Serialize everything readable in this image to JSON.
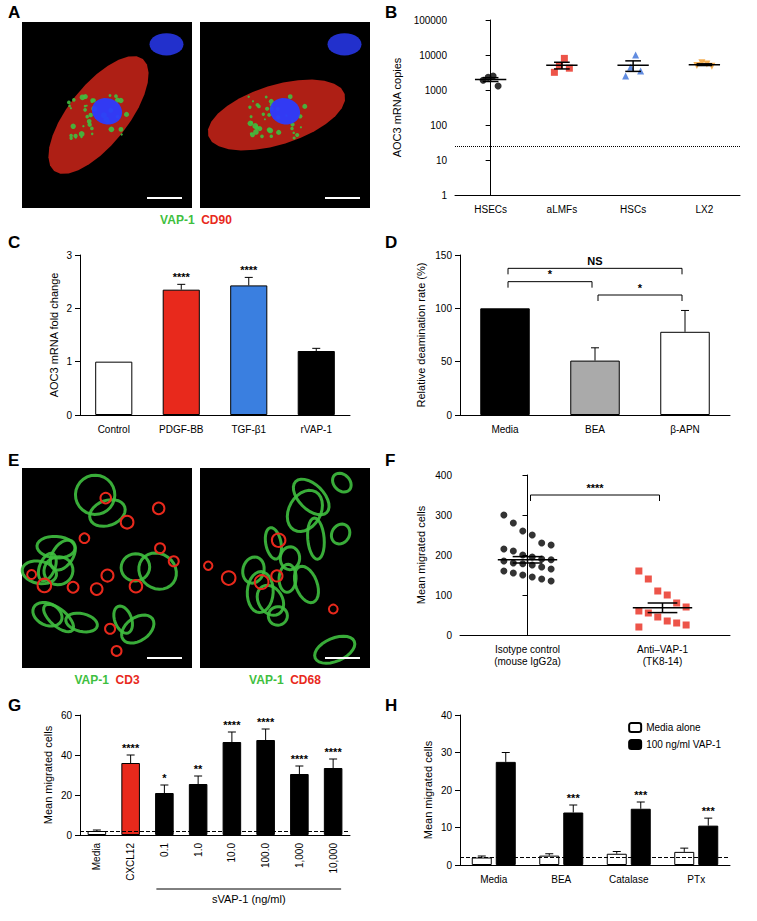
{
  "chart_data": [
    {
      "panel": "B",
      "type": "scatter",
      "categories": [
        "HSECs",
        "aLMFs",
        "HSCs",
        "LX2"
      ],
      "points": [
        [
          1900,
          2300,
          2500,
          1300
        ],
        [
          3200,
          5000,
          8000,
          4200
        ],
        [
          2500,
          4500,
          10000,
          3500
        ],
        [
          5000,
          6000,
          5500,
          4800
        ]
      ],
      "mean": [
        2000,
        5100,
        5100,
        5300
      ],
      "errors": [
        250,
        1100,
        1700,
        300
      ],
      "colors": [
        "#000000",
        "#e8291c",
        "#3a6fd8",
        "#f39c2a"
      ],
      "markers": [
        "circle",
        "square",
        "triangle",
        "triangle-down"
      ],
      "reference_line": 25,
      "line_style": "dotted",
      "ylabel": "AOC3 mRNA copies",
      "log": "y",
      "ylim": [
        1,
        100000
      ],
      "yticks": [
        1,
        10,
        100,
        1000,
        10000,
        100000
      ],
      "grid": false
    },
    {
      "panel": "C",
      "type": "bar",
      "categories": [
        "Control",
        "PDGF-BB",
        "TGF-β1",
        "rVAP-1"
      ],
      "values": [
        1,
        2.35,
        2.43,
        1.2
      ],
      "errors": [
        0,
        0.1,
        0.15,
        0.05
      ],
      "colors": [
        "#ffffff",
        "#e8291c",
        "#3a7fe0",
        "#000000"
      ],
      "significance": [
        null,
        "****",
        "****",
        null
      ],
      "ylabel": "AOC3 mRNA fold change",
      "ylim": [
        0,
        3
      ],
      "yticks": [
        0,
        1,
        2,
        3
      ],
      "grid": false
    },
    {
      "panel": "D",
      "type": "bar",
      "categories": [
        "Media",
        "BEA",
        "β-APN"
      ],
      "values": [
        100,
        51,
        78
      ],
      "errors": [
        0,
        12,
        20
      ],
      "colors": [
        "#000000",
        "#aaaaaa",
        "#ffffff"
      ],
      "comparisons": [
        {
          "from": 1,
          "to": 2,
          "label": "*"
        },
        {
          "from": 0,
          "to": 1,
          "label": "*"
        },
        {
          "from": 0,
          "to": 2,
          "label": "NS"
        }
      ],
      "ylabel": "Relative deamination rate (%)",
      "ylim": [
        0,
        150
      ],
      "yticks": [
        0,
        50,
        100,
        150
      ],
      "grid": false
    },
    {
      "panel": "F",
      "type": "scatter",
      "categories": [
        "Isotype control\n(mouse IgG2a)",
        "Anti–VAP-1\n(TK8-14)"
      ],
      "points": [
        [
          300,
          280,
          260,
          250,
          230,
          225,
          215,
          210,
          200,
          195,
          190,
          188,
          185,
          180,
          178,
          175,
          170,
          165,
          160,
          155,
          150,
          145,
          140,
          135
        ],
        [
          160,
          140,
          110,
          100,
          80,
          70,
          60,
          55,
          45,
          35,
          30,
          25,
          20
        ]
      ],
      "mean": [
        188,
        68
      ],
      "errors": [
        8,
        12
      ],
      "colors": [
        "#000000",
        "#e8291c"
      ],
      "markers": [
        "circle",
        "square"
      ],
      "comparisons": [
        {
          "from": 0,
          "to": 1,
          "label": "****"
        }
      ],
      "ylabel": "Mean migrated cells",
      "ylim": [
        0,
        400
      ],
      "yticks": [
        0,
        100,
        200,
        300,
        400
      ],
      "grid": false
    },
    {
      "panel": "G",
      "type": "bar",
      "categories": [
        "Media",
        "CXCL12",
        "0.1",
        "1.0",
        "10.0",
        "100.0",
        "1,000",
        "10,000"
      ],
      "values": [
        2,
        36,
        21,
        25.5,
        46.5,
        47.5,
        30.5,
        33.5
      ],
      "errors": [
        0.5,
        4,
        4,
        4,
        5,
        5.5,
        4,
        4.5
      ],
      "colors": [
        "#ffffff",
        "#e8291c",
        "#000000",
        "#000000",
        "#000000",
        "#000000",
        "#000000",
        "#000000"
      ],
      "significance": [
        null,
        "****",
        "*",
        "**",
        "****",
        "****",
        "****",
        "****"
      ],
      "reference_line": 2,
      "line_style": "dashed",
      "group_label": {
        "text": "sVAP-1 (ng/ml)",
        "from": 2,
        "to": 7
      },
      "ylabel": "Mean migrated cells",
      "ylim": [
        0,
        60
      ],
      "yticks": [
        0,
        20,
        40,
        60
      ],
      "grid": false
    },
    {
      "panel": "H",
      "type": "bar",
      "categories": [
        "Media",
        "BEA",
        "Catalase",
        "PTx"
      ],
      "series": [
        {
          "name": "Media alone",
          "color": "#ffffff",
          "values": [
            2,
            2.5,
            3,
            3.5
          ],
          "errors": [
            0.4,
            0.5,
            0.6,
            1
          ]
        },
        {
          "name": "100 ng/ml VAP-1",
          "color": "#000000",
          "values": [
            27.5,
            14,
            15,
            10.5
          ],
          "errors": [
            2.5,
            2,
            1.8,
            2
          ],
          "significance": [
            null,
            "***",
            "***",
            "***"
          ]
        }
      ],
      "reference_line": 2,
      "line_style": "dashed",
      "legend": "top-right",
      "ylabel": "Mean migrated cells",
      "ylim": [
        0,
        40
      ],
      "yticks": [
        0,
        10,
        20,
        30,
        40
      ],
      "grid": false
    }
  ],
  "micrographs": [
    {
      "panel": "A",
      "frames": [
        {
          "colors": [
            "#3fbf3f",
            "#e8291c",
            "#2b3cff"
          ]
        },
        {
          "colors": [
            "#3fbf3f",
            "#e8291c",
            "#2b3cff"
          ]
        }
      ],
      "caption": [
        {
          "text": "VAP-1",
          "color": "#3fbf3f"
        },
        {
          "text": "CD90",
          "color": "#e8291c"
        }
      ]
    },
    {
      "panel": "E",
      "frames": [
        {
          "colors": [
            "#3fbf3f",
            "#e8291c"
          ],
          "caption": [
            {
              "text": "VAP-1",
              "color": "#3fbf3f"
            },
            {
              "text": "CD3",
              "color": "#e8291c"
            }
          ]
        },
        {
          "colors": [
            "#3fbf3f",
            "#e8291c"
          ],
          "caption": [
            {
              "text": "VAP-1",
              "color": "#3fbf3f"
            },
            {
              "text": "CD68",
              "color": "#e8291c"
            }
          ]
        }
      ]
    }
  ]
}
